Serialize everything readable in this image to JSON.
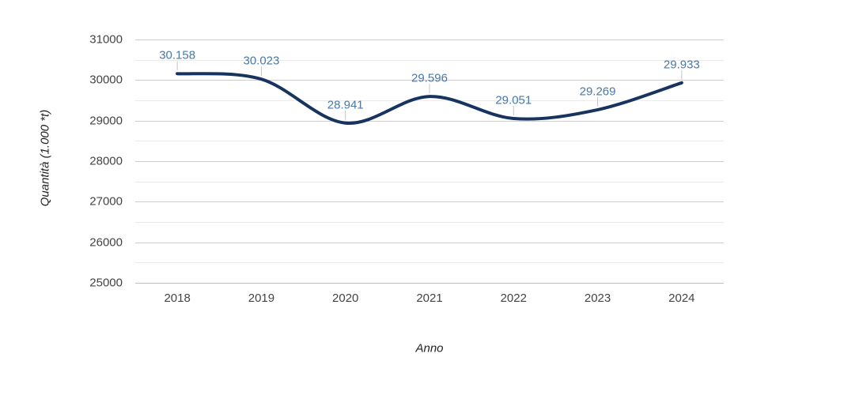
{
  "chart_data": {
    "type": "line",
    "curve": "smooth",
    "title": "",
    "xlabel": "Anno",
    "ylabel": "Quantità (1.000 *t)",
    "x": [
      "2018",
      "2019",
      "2020",
      "2021",
      "2022",
      "2023",
      "2024"
    ],
    "values": [
      30158,
      30023,
      28941,
      29596,
      29051,
      29269,
      29933
    ],
    "point_labels": [
      "30.158",
      "30.023",
      "28.941",
      "29.596",
      "29.051",
      "29.269",
      "29.933"
    ],
    "ylim": [
      25000,
      31000
    ],
    "y_major_ticks": [
      25000,
      26000,
      27000,
      28000,
      29000,
      30000,
      31000
    ],
    "y_minor_ticks": [
      25500,
      26500,
      27500,
      28500,
      29500,
      30500
    ],
    "grid": "major+minor",
    "legend_position": "none"
  },
  "colors": {
    "line": "#17335f",
    "annotation_text": "#4878a8",
    "annotation_stem": "#c4c4c4",
    "gridline_major": "#cccccc",
    "gridline_minor": "#ebebeb",
    "baseline": "#c0c0c0",
    "axis_text": "#444444",
    "axis_title": "#222222",
    "background": "#ffffff"
  }
}
